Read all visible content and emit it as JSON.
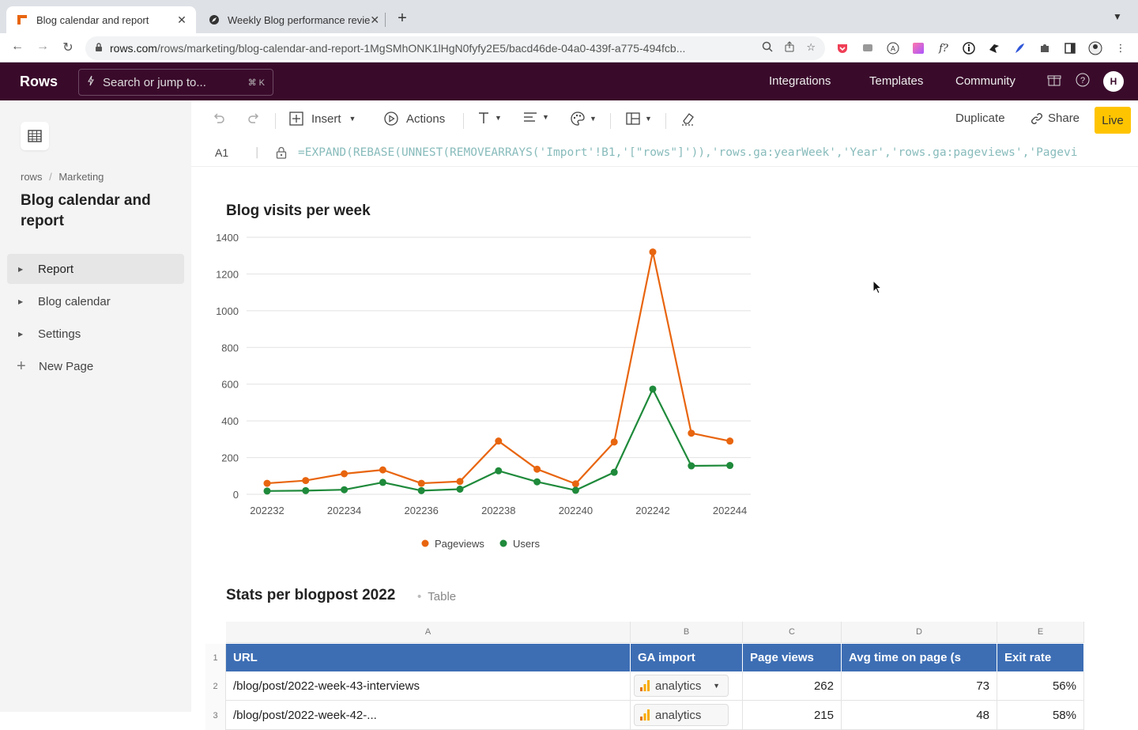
{
  "browser": {
    "tabs": [
      {
        "title": "Blog calendar and report",
        "active": true
      },
      {
        "title": "Weekly Blog performance revie",
        "active": false
      }
    ],
    "url_host": "rows.com",
    "url_path": "/rows/marketing/blog-calendar-and-report-1MgSMhONK1lHgN0fyfy2E5/bacd46de-04a0-439f-a775-494fcb..."
  },
  "app": {
    "logo": "Rows",
    "search_placeholder": "Search or jump to...",
    "search_shortcut": "⌘ K",
    "nav": [
      "Integrations",
      "Templates",
      "Community"
    ],
    "avatar_initial": "H"
  },
  "sidebar": {
    "breadcrumb_root": "rows",
    "breadcrumb_sep": "/",
    "breadcrumb_folder": "Marketing",
    "doc_title": "Blog calendar and report",
    "items": [
      {
        "label": "Report",
        "active": true
      },
      {
        "label": "Blog calendar",
        "active": false
      },
      {
        "label": "Settings",
        "active": false
      }
    ],
    "new_page_label": "New Page"
  },
  "toolbar": {
    "insert_label": "Insert",
    "actions_label": "Actions",
    "duplicate_label": "Duplicate",
    "share_label": "Share",
    "live_label": "Live"
  },
  "formula_bar": {
    "cell_ref": "A1",
    "formula": "=EXPAND(REBASE(UNNEST(REMOVEARRAYS('Import'!B1,'[\"rows\"]')),'rows.ga:yearWeek','Year','rows.ga:pageviews','Pagevi"
  },
  "chart": {
    "title": "Blog visits per week",
    "legend": [
      "Pageviews",
      "Users"
    ]
  },
  "chart_data": {
    "type": "line",
    "title": "Blog visits per week",
    "x": [
      "202232",
      "202233",
      "202234",
      "202235",
      "202236",
      "202237",
      "202238",
      "202239",
      "202240",
      "202241",
      "202242",
      "202243",
      "202244"
    ],
    "x_tick_labels": [
      "202232",
      "202234",
      "202236",
      "202238",
      "202240",
      "202242",
      "202244"
    ],
    "ylim": [
      0,
      1400
    ],
    "y_ticks": [
      0,
      200,
      400,
      600,
      800,
      1000,
      1200,
      1400
    ],
    "grid": true,
    "legend_position": "bottom",
    "series": [
      {
        "name": "Pageviews",
        "color": "#e8650f",
        "values": [
          60,
          75,
          112,
          133,
          60,
          70,
          290,
          137,
          57,
          285,
          1320,
          333,
          290
        ]
      },
      {
        "name": "Users",
        "color": "#1f8a3b",
        "values": [
          18,
          20,
          25,
          65,
          20,
          28,
          128,
          68,
          22,
          120,
          573,
          155,
          157
        ]
      }
    ]
  },
  "stats": {
    "title": "Stats per blogpost 2022",
    "tag": "Table",
    "col_letters": [
      "A",
      "B",
      "C",
      "D",
      "E"
    ],
    "headers": [
      "URL",
      "GA import",
      "Page views",
      "Avg time on page (s",
      "Exit rate"
    ],
    "rows": [
      {
        "num": "1"
      },
      {
        "num": "2",
        "url": "/blog/post/2022-week-43-interviews",
        "ga": "analytics",
        "views": "262",
        "avg": "73",
        "exit": "56%"
      },
      {
        "num": "3",
        "url": "/blog/post/2022-week-42-...",
        "ga": "analytics",
        "views": "215",
        "avg": "48",
        "exit": "58%"
      }
    ]
  }
}
